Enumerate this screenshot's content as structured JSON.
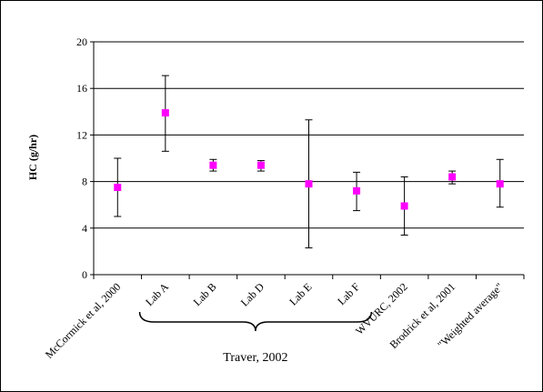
{
  "chart_data": {
    "type": "scatter",
    "title": "",
    "xlabel": "",
    "ylabel": "HC (g/hr)",
    "ylim": [
      0,
      20
    ],
    "yticks": [
      0,
      4,
      8,
      12,
      16,
      20
    ],
    "grid": "horizontal",
    "legend": "none",
    "categories": [
      "McCormick et al, 2000",
      "Lab A",
      "Lab B",
      "Lab D",
      "Lab E",
      "Lab F",
      "WVURC, 2002",
      "Brodrick et al, 2001",
      "\"Weighted average\""
    ],
    "series": [
      {
        "values": [
          7.5,
          13.9,
          9.4,
          9.4,
          7.8,
          7.2,
          5.9,
          8.4,
          7.8
        ],
        "error_low": [
          5.0,
          10.6,
          8.9,
          8.9,
          2.3,
          5.5,
          3.4,
          7.8,
          5.8
        ],
        "error_high": [
          10.0,
          17.1,
          9.9,
          9.8,
          13.3,
          8.8,
          8.4,
          8.9,
          9.9
        ],
        "marker": "square",
        "color": "#ff00ff"
      }
    ],
    "group_annotation": {
      "label": "Traver, 2002",
      "categories": [
        "Lab A",
        "Lab B",
        "Lab D",
        "Lab E",
        "Lab F"
      ]
    }
  }
}
